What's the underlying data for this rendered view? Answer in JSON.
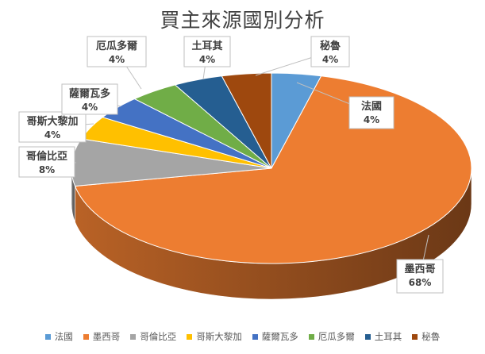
{
  "chart_data": {
    "type": "pie",
    "title": "買主來源國別分析",
    "three_d": true,
    "legend_position": "bottom",
    "slices": [
      {
        "name": "法國",
        "value": 4,
        "label": "4%",
        "color": "#5B9BD5"
      },
      {
        "name": "墨西哥",
        "value": 68,
        "label": "68%",
        "color": "#ED7D31"
      },
      {
        "name": "哥倫比亞",
        "value": 8,
        "label": "8%",
        "color": "#A5A5A5"
      },
      {
        "name": "哥斯大黎加",
        "value": 4,
        "label": "4%",
        "color": "#FFC000"
      },
      {
        "name": "薩爾瓦多",
        "value": 4,
        "label": "4%",
        "color": "#4472C4"
      },
      {
        "name": "厄瓜多爾",
        "value": 4,
        "label": "4%",
        "color": "#70AD47"
      },
      {
        "name": "土耳其",
        "value": 4,
        "label": "4%",
        "color": "#255E91"
      },
      {
        "name": "秘魯",
        "value": 4,
        "label": "4%",
        "color": "#9E480E"
      }
    ]
  }
}
